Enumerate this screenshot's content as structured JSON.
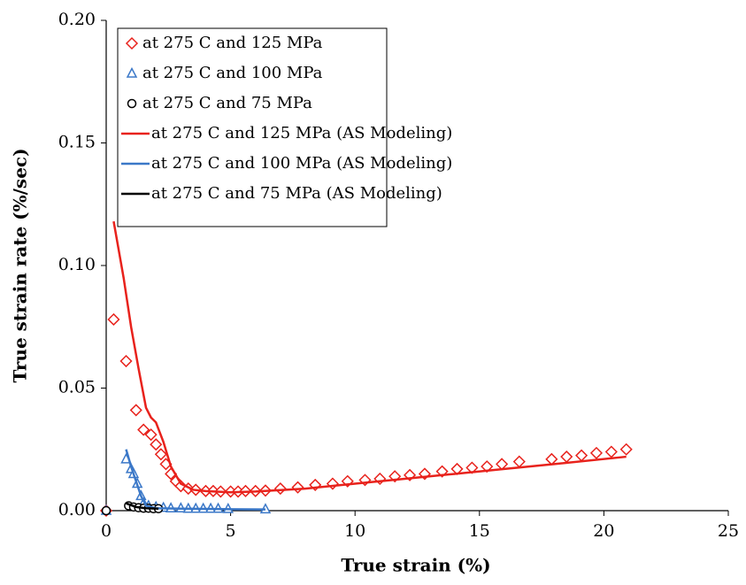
{
  "chart_data": {
    "type": "scatter",
    "xlabel": "True strain (%)",
    "ylabel": "True strain rate (%/sec)",
    "xlim": [
      0,
      25
    ],
    "xticks": [
      0,
      5,
      10,
      15,
      20,
      25
    ],
    "ylim": [
      0,
      0.2
    ],
    "yticks": [
      {
        "value": 0,
        "label": "0.00"
      },
      {
        "value": 0.05,
        "label": "0.05"
      },
      {
        "value": 0.1,
        "label": "0.10"
      },
      {
        "value": 0.15,
        "label": "0.15"
      },
      {
        "value": 0.2,
        "label": "0.20"
      }
    ],
    "legend": "upper left",
    "series": [
      {
        "name": "at 275 C and 125 MPa",
        "color": "#e8221c",
        "marker": "diamond",
        "x": [
          0,
          0.3,
          0.8,
          1.2,
          1.5,
          1.8,
          2.0,
          2.2,
          2.4,
          2.6,
          2.8,
          3.0,
          3.3,
          3.6,
          4.0,
          4.3,
          4.6,
          5.0,
          5.3,
          5.6,
          6.0,
          6.4,
          7.0,
          7.7,
          8.4,
          9.1,
          9.7,
          10.4,
          11.0,
          11.6,
          12.2,
          12.8,
          13.5,
          14.1,
          14.7,
          15.3,
          15.9,
          16.6,
          17.9,
          18.5,
          19.1,
          19.7,
          20.3,
          20.9
        ],
        "values": [
          0,
          0.078,
          0.061,
          0.041,
          0.033,
          0.031,
          0.027,
          0.023,
          0.019,
          0.015,
          0.012,
          0.01,
          0.009,
          0.0085,
          0.008,
          0.008,
          0.0078,
          0.0078,
          0.0078,
          0.008,
          0.008,
          0.0082,
          0.009,
          0.0095,
          0.0105,
          0.011,
          0.012,
          0.0125,
          0.013,
          0.014,
          0.0145,
          0.015,
          0.016,
          0.017,
          0.0175,
          0.018,
          0.019,
          0.02,
          0.021,
          0.022,
          0.0225,
          0.0235,
          0.024,
          0.025
        ]
      },
      {
        "name": "at 275 C and 100 MPa",
        "color": "#3b78c8",
        "marker": "triangle",
        "x": [
          0,
          0.8,
          1.0,
          1.1,
          1.25,
          1.4,
          1.5,
          1.7,
          2.0,
          2.3,
          2.6,
          3.0,
          3.3,
          3.6,
          3.9,
          4.2,
          4.5,
          4.9,
          6.4
        ],
        "values": [
          0,
          0.021,
          0.017,
          0.015,
          0.011,
          0.006,
          0.003,
          0.002,
          0.0015,
          0.0012,
          0.001,
          0.001,
          0.0008,
          0.0008,
          0.0008,
          0.0008,
          0.0008,
          0.0007,
          0.0006
        ]
      },
      {
        "name": "at 275 C and 75 MPa",
        "color": "#000000",
        "marker": "circle",
        "x": [
          0,
          0.9,
          1.1,
          1.3,
          1.5,
          1.7,
          1.9,
          2.1
        ],
        "values": [
          0,
          0.002,
          0.0015,
          0.0012,
          0.001,
          0.001,
          0.0008,
          0.0008
        ]
      },
      {
        "name": "at 275 C and 125 MPa (AS Modeling)",
        "color": "#e8221c",
        "marker": "line",
        "x": [
          0.3,
          0.7,
          1.0,
          1.3,
          1.6,
          1.8,
          2.0,
          2.3,
          2.6,
          3.0,
          3.5,
          4,
          5,
          6,
          8,
          10,
          12,
          14,
          16,
          18,
          20.9
        ],
        "values": [
          0.118,
          0.095,
          0.075,
          0.058,
          0.042,
          0.038,
          0.036,
          0.028,
          0.018,
          0.011,
          0.0085,
          0.008,
          0.0075,
          0.0078,
          0.009,
          0.011,
          0.013,
          0.015,
          0.017,
          0.019,
          0.022
        ]
      },
      {
        "name": "at 275 C and 100 MPa (AS Modeling)",
        "color": "#3b78c8",
        "marker": "line",
        "x": [
          0.8,
          1.0,
          1.2,
          1.4,
          1.6,
          2.0,
          3.0,
          4,
          5,
          6.4
        ],
        "values": [
          0.025,
          0.018,
          0.012,
          0.006,
          0.002,
          0.001,
          0.0008,
          0.0007,
          0.0006,
          0.0005
        ]
      },
      {
        "name": "at 275 C and 75 MPa (AS Modeling)",
        "color": "#000000",
        "marker": "line",
        "x": [
          0.8,
          1.2,
          1.6,
          2.1
        ],
        "values": [
          0.003,
          0.0015,
          0.001,
          0.0008
        ]
      }
    ]
  }
}
